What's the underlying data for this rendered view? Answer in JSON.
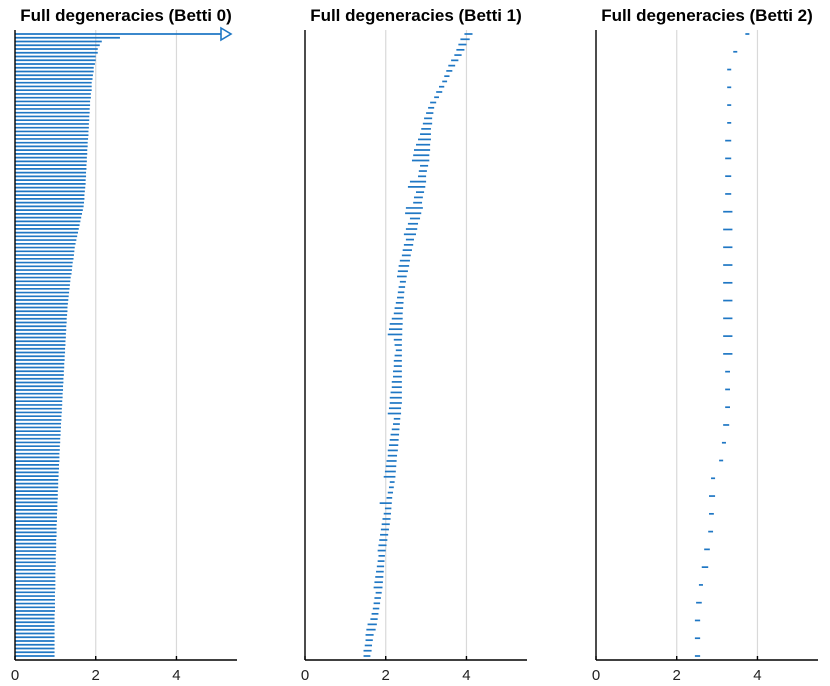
{
  "colors": {
    "bar": "#1f77c4",
    "grid": "#d9d9d9",
    "axis": "#000000"
  },
  "chart_data": [
    {
      "type": "barcode",
      "title": "Full degeneracies (Betti 0)",
      "xlim": [
        0,
        5.5
      ],
      "xticks": [
        0,
        2,
        4
      ],
      "grid": true,
      "intervals": {
        "birth": 0,
        "infinite_interval": {
          "birth": 0,
          "death": "infinity",
          "row": 0
        },
        "deaths": [
          2.6,
          2.15,
          2.1,
          2.05,
          2.05,
          2.0,
          2.0,
          1.98,
          1.95,
          1.95,
          1.93,
          1.92,
          1.9,
          1.9,
          1.9,
          1.88,
          1.88,
          1.86,
          1.86,
          1.85,
          1.85,
          1.84,
          1.84,
          1.83,
          1.83,
          1.82,
          1.82,
          1.81,
          1.8,
          1.8,
          1.79,
          1.79,
          1.78,
          1.78,
          1.77,
          1.77,
          1.76,
          1.76,
          1.75,
          1.75,
          1.74,
          1.73,
          1.72,
          1.72,
          1.71,
          1.7,
          1.68,
          1.66,
          1.64,
          1.62,
          1.6,
          1.58,
          1.56,
          1.54,
          1.52,
          1.5,
          1.48,
          1.47,
          1.46,
          1.45,
          1.43,
          1.42,
          1.41,
          1.4,
          1.38,
          1.37,
          1.36,
          1.35,
          1.34,
          1.33,
          1.32,
          1.31,
          1.3,
          1.3,
          1.29,
          1.28,
          1.28,
          1.27,
          1.27,
          1.26,
          1.26,
          1.25,
          1.25,
          1.24,
          1.24,
          1.23,
          1.23,
          1.22,
          1.22,
          1.21,
          1.21,
          1.2,
          1.2,
          1.19,
          1.19,
          1.18,
          1.18,
          1.17,
          1.17,
          1.16,
          1.16,
          1.15,
          1.15,
          1.14,
          1.14,
          1.13,
          1.13,
          1.12,
          1.12,
          1.11,
          1.11,
          1.1,
          1.1,
          1.1,
          1.09,
          1.09,
          1.08,
          1.08,
          1.07,
          1.07,
          1.07,
          1.06,
          1.06,
          1.06,
          1.05,
          1.05,
          1.05,
          1.04,
          1.04,
          1.04,
          1.03,
          1.03,
          1.03,
          1.03,
          1.02,
          1.02,
          1.02,
          1.02,
          1.01,
          1.01,
          1.01,
          1.01,
          1.0,
          1.0,
          1.0,
          1.0,
          1.0,
          1.0,
          0.99,
          0.99,
          0.99,
          0.99,
          0.99,
          0.99,
          0.98,
          0.98,
          0.98,
          0.98,
          0.98,
          0.98,
          0.98,
          0.98,
          0.98,
          0.98,
          0.98,
          0.98
        ]
      }
    },
    {
      "type": "barcode",
      "title": "Full degeneracies (Betti 1)",
      "xlim": [
        0,
        5.5
      ],
      "xticks": [
        0,
        2,
        4
      ],
      "grid": true,
      "intervals": [
        {
          "birth": 3.95,
          "death": 4.15
        },
        {
          "birth": 3.85,
          "death": 4.08
        },
        {
          "birth": 3.8,
          "death": 4.0
        },
        {
          "birth": 3.75,
          "death": 3.95
        },
        {
          "birth": 3.7,
          "death": 3.88
        },
        {
          "birth": 3.62,
          "death": 3.8
        },
        {
          "birth": 3.55,
          "death": 3.72
        },
        {
          "birth": 3.5,
          "death": 3.65
        },
        {
          "birth": 3.45,
          "death": 3.58
        },
        {
          "birth": 3.4,
          "death": 3.52
        },
        {
          "birth": 3.32,
          "death": 3.45
        },
        {
          "birth": 3.25,
          "death": 3.4
        },
        {
          "birth": 3.2,
          "death": 3.32
        },
        {
          "birth": 3.1,
          "death": 3.25
        },
        {
          "birth": 3.05,
          "death": 3.2
        },
        {
          "birth": 3.0,
          "death": 3.18
        },
        {
          "birth": 2.95,
          "death": 3.15
        },
        {
          "birth": 2.92,
          "death": 3.15
        },
        {
          "birth": 2.88,
          "death": 3.12
        },
        {
          "birth": 2.85,
          "death": 3.12
        },
        {
          "birth": 2.8,
          "death": 3.12
        },
        {
          "birth": 2.75,
          "death": 3.1
        },
        {
          "birth": 2.7,
          "death": 3.1
        },
        {
          "birth": 2.68,
          "death": 3.08
        },
        {
          "birth": 2.65,
          "death": 3.08
        },
        {
          "birth": 2.85,
          "death": 3.05
        },
        {
          "birth": 2.82,
          "death": 3.02
        },
        {
          "birth": 2.8,
          "death": 3.0
        },
        {
          "birth": 2.6,
          "death": 3.0
        },
        {
          "birth": 2.55,
          "death": 2.98
        },
        {
          "birth": 2.75,
          "death": 2.95
        },
        {
          "birth": 2.7,
          "death": 2.92
        },
        {
          "birth": 2.68,
          "death": 2.9
        },
        {
          "birth": 2.5,
          "death": 2.92
        },
        {
          "birth": 2.48,
          "death": 2.88
        },
        {
          "birth": 2.6,
          "death": 2.85
        },
        {
          "birth": 2.55,
          "death": 2.8
        },
        {
          "birth": 2.5,
          "death": 2.78
        },
        {
          "birth": 2.45,
          "death": 2.75
        },
        {
          "birth": 2.5,
          "death": 2.7
        },
        {
          "birth": 2.45,
          "death": 2.68
        },
        {
          "birth": 2.42,
          "death": 2.65
        },
        {
          "birth": 2.4,
          "death": 2.62
        },
        {
          "birth": 2.35,
          "death": 2.6
        },
        {
          "birth": 2.32,
          "death": 2.58
        },
        {
          "birth": 2.3,
          "death": 2.55
        },
        {
          "birth": 2.28,
          "death": 2.52
        },
        {
          "birth": 2.35,
          "death": 2.5
        },
        {
          "birth": 2.32,
          "death": 2.48
        },
        {
          "birth": 2.3,
          "death": 2.46
        },
        {
          "birth": 2.28,
          "death": 2.45
        },
        {
          "birth": 2.25,
          "death": 2.44
        },
        {
          "birth": 2.22,
          "death": 2.43
        },
        {
          "birth": 2.2,
          "death": 2.42
        },
        {
          "birth": 2.15,
          "death": 2.42
        },
        {
          "birth": 2.1,
          "death": 2.42
        },
        {
          "birth": 2.08,
          "death": 2.41
        },
        {
          "birth": 2.05,
          "death": 2.41
        },
        {
          "birth": 2.2,
          "death": 2.4
        },
        {
          "birth": 2.22,
          "death": 2.4
        },
        {
          "birth": 2.25,
          "death": 2.4
        },
        {
          "birth": 2.22,
          "death": 2.4
        },
        {
          "birth": 2.2,
          "death": 2.4
        },
        {
          "birth": 2.2,
          "death": 2.4
        },
        {
          "birth": 2.18,
          "death": 2.4
        },
        {
          "birth": 2.18,
          "death": 2.4
        },
        {
          "birth": 2.15,
          "death": 2.4
        },
        {
          "birth": 2.15,
          "death": 2.4
        },
        {
          "birth": 2.12,
          "death": 2.4
        },
        {
          "birth": 2.1,
          "death": 2.4
        },
        {
          "birth": 2.1,
          "death": 2.4
        },
        {
          "birth": 2.08,
          "death": 2.38
        },
        {
          "birth": 2.05,
          "death": 2.38
        },
        {
          "birth": 2.2,
          "death": 2.36
        },
        {
          "birth": 2.18,
          "death": 2.35
        },
        {
          "birth": 2.15,
          "death": 2.34
        },
        {
          "birth": 2.12,
          "death": 2.33
        },
        {
          "birth": 2.1,
          "death": 2.32
        },
        {
          "birth": 2.08,
          "death": 2.31
        },
        {
          "birth": 2.05,
          "death": 2.3
        },
        {
          "birth": 2.05,
          "death": 2.28
        },
        {
          "birth": 2.02,
          "death": 2.27
        },
        {
          "birth": 2.0,
          "death": 2.26
        },
        {
          "birth": 1.98,
          "death": 2.25
        },
        {
          "birth": 1.95,
          "death": 2.24
        },
        {
          "birth": 2.1,
          "death": 2.22
        },
        {
          "birth": 2.08,
          "death": 2.2
        },
        {
          "birth": 2.05,
          "death": 2.18
        },
        {
          "birth": 2.02,
          "death": 2.16
        },
        {
          "birth": 1.85,
          "death": 2.15
        },
        {
          "birth": 1.98,
          "death": 2.14
        },
        {
          "birth": 1.95,
          "death": 2.13
        },
        {
          "birth": 1.92,
          "death": 2.12
        },
        {
          "birth": 1.9,
          "death": 2.1
        },
        {
          "birth": 1.88,
          "death": 2.08
        },
        {
          "birth": 1.86,
          "death": 2.06
        },
        {
          "birth": 1.84,
          "death": 2.04
        },
        {
          "birth": 1.82,
          "death": 2.02
        },
        {
          "birth": 1.8,
          "death": 2.0
        },
        {
          "birth": 1.82,
          "death": 1.98
        },
        {
          "birth": 1.8,
          "death": 1.97
        },
        {
          "birth": 1.78,
          "death": 1.96
        },
        {
          "birth": 1.76,
          "death": 1.95
        },
        {
          "birth": 1.74,
          "death": 1.94
        },
        {
          "birth": 1.72,
          "death": 1.93
        },
        {
          "birth": 1.7,
          "death": 1.92
        },
        {
          "birth": 1.75,
          "death": 1.9
        },
        {
          "birth": 1.72,
          "death": 1.88
        },
        {
          "birth": 1.7,
          "death": 1.86
        },
        {
          "birth": 1.68,
          "death": 1.84
        },
        {
          "birth": 1.65,
          "death": 1.82
        },
        {
          "birth": 1.62,
          "death": 1.8
        },
        {
          "birth": 1.55,
          "death": 1.78
        },
        {
          "birth": 1.52,
          "death": 1.75
        },
        {
          "birth": 1.5,
          "death": 1.7
        },
        {
          "birth": 1.5,
          "death": 1.68
        },
        {
          "birth": 1.48,
          "death": 1.66
        },
        {
          "birth": 1.45,
          "death": 1.65
        },
        {
          "birth": 1.45,
          "death": 1.62
        }
      ]
    },
    {
      "type": "barcode",
      "title": "Full degeneracies (Betti 2)",
      "xlim": [
        0,
        5.5
      ],
      "xticks": [
        0,
        2,
        4
      ],
      "grid": true,
      "intervals": [
        {
          "birth": 3.7,
          "death": 3.8
        },
        {
          "birth": 3.4,
          "death": 3.5
        },
        {
          "birth": 3.25,
          "death": 3.35
        },
        {
          "birth": 3.25,
          "death": 3.35
        },
        {
          "birth": 3.25,
          "death": 3.35
        },
        {
          "birth": 3.25,
          "death": 3.35
        },
        {
          "birth": 3.2,
          "death": 3.35
        },
        {
          "birth": 3.2,
          "death": 3.35
        },
        {
          "birth": 3.2,
          "death": 3.35
        },
        {
          "birth": 3.2,
          "death": 3.35
        },
        {
          "birth": 3.15,
          "death": 3.38
        },
        {
          "birth": 3.15,
          "death": 3.38
        },
        {
          "birth": 3.15,
          "death": 3.38
        },
        {
          "birth": 3.15,
          "death": 3.38
        },
        {
          "birth": 3.15,
          "death": 3.38
        },
        {
          "birth": 3.15,
          "death": 3.38
        },
        {
          "birth": 3.15,
          "death": 3.38
        },
        {
          "birth": 3.15,
          "death": 3.38
        },
        {
          "birth": 3.15,
          "death": 3.38
        },
        {
          "birth": 3.2,
          "death": 3.32
        },
        {
          "birth": 3.2,
          "death": 3.32
        },
        {
          "birth": 3.2,
          "death": 3.32
        },
        {
          "birth": 3.15,
          "death": 3.3
        },
        {
          "birth": 3.12,
          "death": 3.22
        },
        {
          "birth": 3.05,
          "death": 3.15
        },
        {
          "birth": 2.85,
          "death": 2.95
        },
        {
          "birth": 2.8,
          "death": 2.95
        },
        {
          "birth": 2.8,
          "death": 2.92
        },
        {
          "birth": 2.78,
          "death": 2.9
        },
        {
          "birth": 2.68,
          "death": 2.82
        },
        {
          "birth": 2.62,
          "death": 2.78
        },
        {
          "birth": 2.55,
          "death": 2.65
        },
        {
          "birth": 2.48,
          "death": 2.62
        },
        {
          "birth": 2.45,
          "death": 2.58
        },
        {
          "birth": 2.45,
          "death": 2.58
        },
        {
          "birth": 2.45,
          "death": 2.58
        }
      ]
    }
  ]
}
